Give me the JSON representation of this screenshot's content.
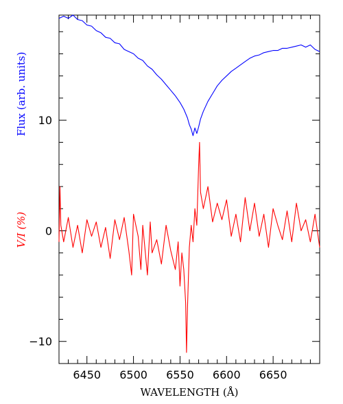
{
  "chart_data": {
    "type": "line",
    "xlabel": "WAVELENGTH (Å)",
    "xlim": [
      6420,
      6700
    ],
    "ylim": [
      -12,
      19.5
    ],
    "x_ticks": [
      6450,
      6500,
      6550,
      6600,
      6650
    ],
    "y_ticks": [
      -10,
      0,
      10
    ],
    "grid": false,
    "series": [
      {
        "name": "Flux (arb. units)",
        "color": "#0000ff",
        "x": [
          6420,
          6425,
          6430,
          6435,
          6440,
          6445,
          6450,
          6455,
          6460,
          6465,
          6470,
          6475,
          6480,
          6485,
          6490,
          6495,
          6500,
          6505,
          6510,
          6515,
          6520,
          6525,
          6530,
          6535,
          6540,
          6545,
          6550,
          6552,
          6554,
          6556,
          6558,
          6560,
          6562,
          6564,
          6566,
          6568,
          6570,
          6572,
          6575,
          6580,
          6585,
          6590,
          6595,
          6600,
          6605,
          6610,
          6615,
          6620,
          6625,
          6630,
          6635,
          6640,
          6645,
          6650,
          6655,
          6660,
          6665,
          6670,
          6675,
          6680,
          6685,
          6690,
          6695,
          6700
        ],
        "values": [
          19.2,
          19.4,
          19.2,
          19.5,
          19.1,
          19.0,
          18.6,
          18.5,
          18.1,
          17.9,
          17.5,
          17.4,
          17.0,
          16.9,
          16.4,
          16.2,
          16.0,
          15.6,
          15.4,
          14.9,
          14.6,
          14.1,
          13.7,
          13.2,
          12.7,
          12.2,
          11.6,
          11.3,
          11.0,
          10.6,
          10.2,
          9.6,
          9.2,
          8.6,
          9.3,
          8.8,
          9.4,
          10.1,
          10.8,
          11.7,
          12.4,
          13.1,
          13.6,
          14.0,
          14.4,
          14.7,
          15.0,
          15.3,
          15.6,
          15.8,
          15.9,
          16.1,
          16.2,
          16.3,
          16.3,
          16.5,
          16.5,
          16.6,
          16.7,
          16.8,
          16.6,
          16.8,
          16.4,
          16.2
        ]
      },
      {
        "name": "V/I (%)",
        "color": "#ff0000",
        "x": [
          6420,
          6421,
          6422,
          6425,
          6430,
          6435,
          6440,
          6445,
          6450,
          6455,
          6460,
          6465,
          6470,
          6475,
          6480,
          6485,
          6490,
          6495,
          6498,
          6500,
          6505,
          6508,
          6510,
          6515,
          6518,
          6520,
          6525,
          6530,
          6535,
          6540,
          6545,
          6548,
          6550,
          6552,
          6554,
          6556,
          6557,
          6558,
          6560,
          6562,
          6564,
          6566,
          6568,
          6570,
          6571,
          6572,
          6575,
          6580,
          6585,
          6590,
          6595,
          6600,
          6605,
          6610,
          6615,
          6620,
          6625,
          6630,
          6635,
          6640,
          6645,
          6650,
          6655,
          6660,
          6665,
          6670,
          6675,
          6680,
          6685,
          6690,
          6695,
          6700
        ],
        "values": [
          -1.0,
          4.0,
          0.5,
          -1.0,
          1.2,
          -1.5,
          0.5,
          -2.0,
          1.0,
          -0.5,
          0.8,
          -1.5,
          0.3,
          -2.5,
          1.0,
          -0.8,
          1.2,
          -1.8,
          -4.0,
          1.5,
          -0.5,
          -3.5,
          0.5,
          -4.0,
          0.8,
          -2.0,
          -0.8,
          -3.0,
          0.5,
          -1.8,
          -3.5,
          -1.0,
          -5.0,
          -2.0,
          -3.5,
          -6.5,
          -11.0,
          -7.0,
          -1.5,
          0.5,
          -1.0,
          2.0,
          0.5,
          6.0,
          8.0,
          3.5,
          2.0,
          4.0,
          0.8,
          2.5,
          1.0,
          2.8,
          -0.5,
          1.5,
          -1.0,
          3.0,
          0.0,
          2.5,
          -0.5,
          1.5,
          -1.5,
          2.0,
          0.5,
          -0.8,
          1.8,
          -1.0,
          2.5,
          0.0,
          1.0,
          -1.0,
          1.5,
          -1.5
        ]
      }
    ]
  }
}
